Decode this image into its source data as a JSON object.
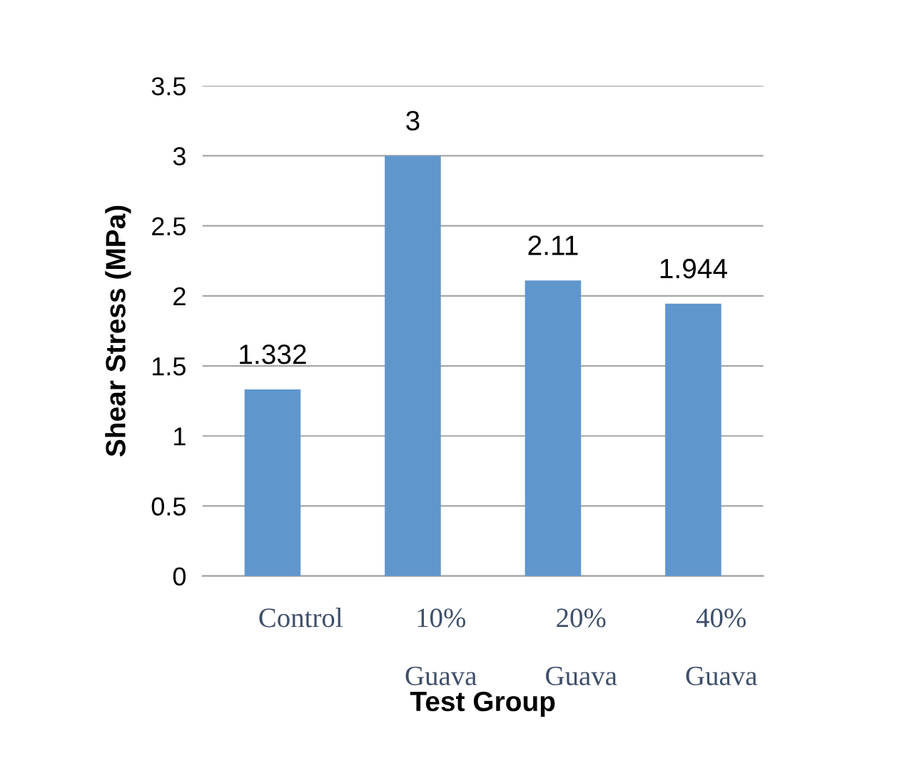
{
  "chart_data": {
    "type": "bar",
    "xlabel": "Test Group",
    "ylabel": "Shear Stress (MPa)",
    "categories": [
      "Control",
      "10%\n\nGuava",
      "20%\n\nGuava",
      "40%\n\nGuava"
    ],
    "values": [
      1.332,
      3,
      2.11,
      1.944
    ],
    "color": "#5f97cd",
    "ylim": [
      0,
      3.5
    ],
    "yticks": [
      0,
      0.5,
      1,
      1.5,
      2,
      2.5,
      3,
      3.5
    ],
    "grid": "y",
    "data_labels": true
  }
}
